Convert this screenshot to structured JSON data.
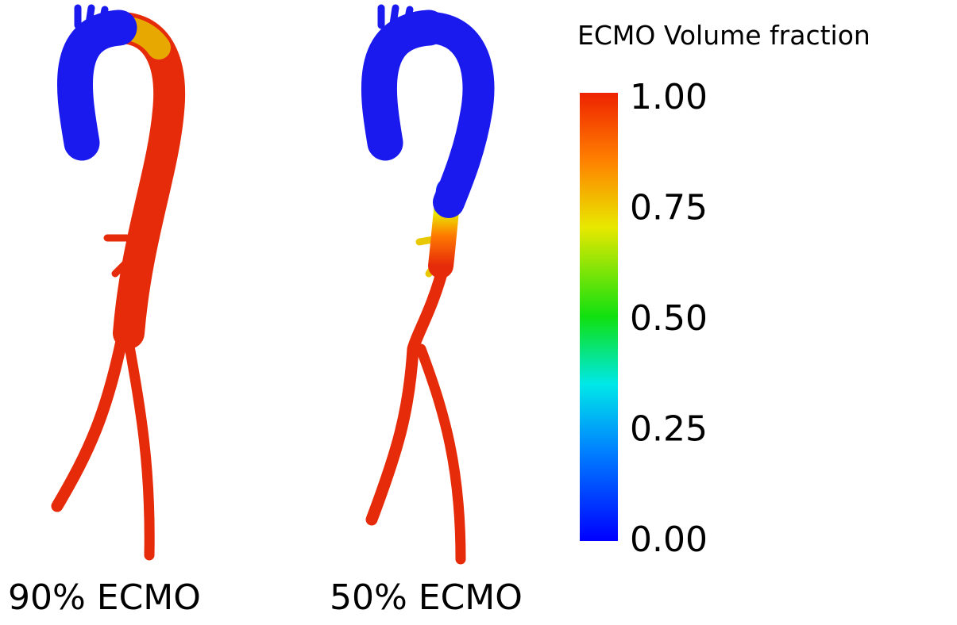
{
  "panels": [
    {
      "label": "90% ECMO"
    },
    {
      "label": "50% ECMO"
    }
  ],
  "colorbar": {
    "title": "ECMO Volume fraction",
    "ticks": [
      {
        "value": 1,
        "label": "1.00"
      },
      {
        "value": 0.75,
        "label": "0.75"
      },
      {
        "value": 0.5,
        "label": "0.50"
      },
      {
        "value": 0.25,
        "label": "0.25"
      },
      {
        "value": 0,
        "label": "0.00"
      }
    ]
  }
}
